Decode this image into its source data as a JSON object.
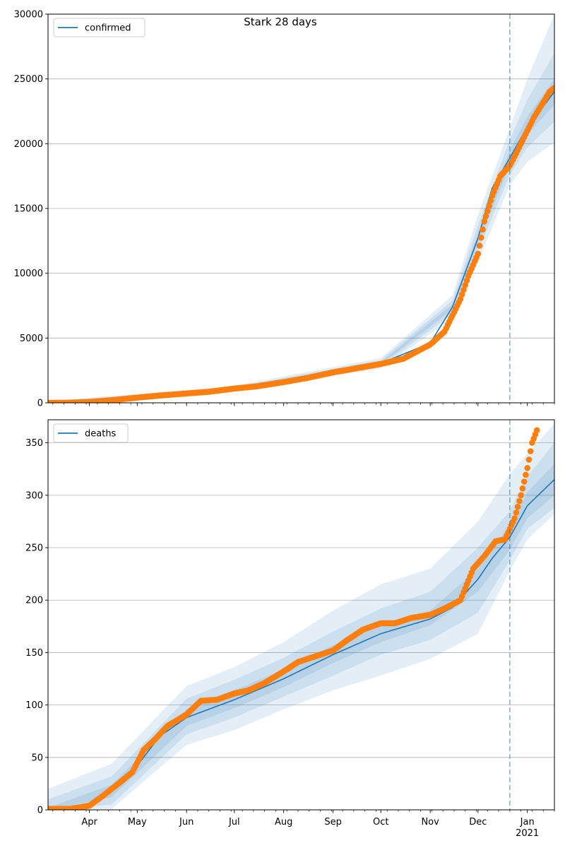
{
  "title": "Stark 28 days",
  "colors": {
    "model_line": "#1f77b4",
    "observed_points": "#ff7f0e",
    "band": "#1f77b4",
    "grid": "#b0b0b0",
    "forecast_marker": "#1f77b4"
  },
  "x_axis": {
    "range": [
      "2020-03-06",
      "2021-01-18"
    ],
    "month_ticks": [
      {
        "date": "2020-04-01",
        "label": "Apr",
        "sublabel": ""
      },
      {
        "date": "2020-05-01",
        "label": "May",
        "sublabel": ""
      },
      {
        "date": "2020-06-01",
        "label": "Jun",
        "sublabel": ""
      },
      {
        "date": "2020-07-01",
        "label": "Jul",
        "sublabel": ""
      },
      {
        "date": "2020-08-01",
        "label": "Aug",
        "sublabel": ""
      },
      {
        "date": "2020-09-01",
        "label": "Sep",
        "sublabel": ""
      },
      {
        "date": "2020-10-01",
        "label": "Oct",
        "sublabel": ""
      },
      {
        "date": "2020-11-01",
        "label": "Nov",
        "sublabel": ""
      },
      {
        "date": "2020-12-01",
        "label": "Dec",
        "sublabel": ""
      },
      {
        "date": "2021-01-01",
        "label": "Jan",
        "sublabel": "2021"
      }
    ],
    "forecast_start": "2020-12-21"
  },
  "chart_data": [
    {
      "type": "line",
      "legend": "confirmed",
      "legend_position": "upper-left",
      "grid": true,
      "ylim": [
        0,
        30000
      ],
      "yticks": [
        0,
        5000,
        10000,
        15000,
        20000,
        25000,
        30000
      ],
      "model_series": {
        "name": "confirmed",
        "x": [
          "2020-03-06",
          "2020-04-01",
          "2020-05-01",
          "2020-06-01",
          "2020-07-01",
          "2020-08-01",
          "2020-09-01",
          "2020-10-01",
          "2020-11-01",
          "2020-11-15",
          "2020-12-01",
          "2020-12-10",
          "2020-12-21",
          "2021-01-01",
          "2021-01-18"
        ],
        "y": [
          0,
          150,
          450,
          780,
          1100,
          1600,
          2350,
          3050,
          4600,
          7400,
          12700,
          16600,
          18900,
          21300,
          24000
        ]
      },
      "uncertainty_bands": [
        {
          "level": "inner",
          "x": [
            "2020-03-06",
            "2020-07-01",
            "2020-10-01",
            "2020-11-15",
            "2020-12-01",
            "2020-12-21",
            "2021-01-01",
            "2021-01-18"
          ],
          "lower": [
            0,
            1050,
            2950,
            7200,
            12300,
            18300,
            20700,
            23000
          ],
          "upper": [
            50,
            1150,
            3150,
            7600,
            13100,
            19500,
            22100,
            25000
          ]
        },
        {
          "level": "middle",
          "x": [
            "2020-03-06",
            "2020-07-01",
            "2020-10-01",
            "2020-11-15",
            "2020-12-01",
            "2020-12-21",
            "2021-01-01",
            "2021-01-18"
          ],
          "lower": [
            0,
            980,
            2800,
            6900,
            11700,
            17600,
            19700,
            21700
          ],
          "upper": [
            80,
            1230,
            3300,
            7900,
            13700,
            20300,
            23400,
            27000
          ]
        },
        {
          "level": "outer",
          "x": [
            "2020-03-06",
            "2020-07-01",
            "2020-10-01",
            "2020-11-15",
            "2020-12-01",
            "2020-12-21",
            "2021-01-01",
            "2021-01-18"
          ],
          "lower": [
            0,
            900,
            2650,
            6500,
            10900,
            16800,
            18600,
            20100
          ],
          "upper": [
            120,
            1320,
            3450,
            8300,
            14500,
            21200,
            25000,
            30000
          ]
        }
      ],
      "observed": {
        "name": "",
        "x": [
          "2020-03-06",
          "2020-03-20",
          "2020-03-31",
          "2020-04-15",
          "2020-05-01",
          "2020-05-15",
          "2020-06-01",
          "2020-06-15",
          "2020-07-01",
          "2020-07-15",
          "2020-08-01",
          "2020-08-15",
          "2020-09-01",
          "2020-09-15",
          "2020-10-01",
          "2020-10-15",
          "2020-11-01",
          "2020-11-10",
          "2020-11-20",
          "2020-11-25",
          "2020-12-01",
          "2020-12-05",
          "2020-12-10",
          "2020-12-15",
          "2020-12-21",
          "2020-12-26",
          "2021-01-01",
          "2021-01-05",
          "2021-01-10",
          "2021-01-15",
          "2021-01-18"
        ],
        "y": [
          0,
          10,
          60,
          200,
          400,
          560,
          720,
          850,
          1100,
          1270,
          1600,
          1900,
          2350,
          2650,
          3000,
          3400,
          4500,
          5500,
          8000,
          9800,
          11500,
          14000,
          16000,
          17500,
          18300,
          19500,
          21000,
          22000,
          23000,
          24000,
          24300
        ]
      }
    },
    {
      "type": "line",
      "legend": "deaths",
      "legend_position": "upper-left",
      "grid": true,
      "ylim": [
        0,
        372
      ],
      "yticks": [
        0,
        50,
        100,
        150,
        200,
        250,
        300,
        350
      ],
      "model_series": {
        "name": "deaths",
        "x": [
          "2020-03-06",
          "2020-04-01",
          "2020-04-15",
          "2020-05-01",
          "2020-05-15",
          "2020-06-01",
          "2020-07-01",
          "2020-08-01",
          "2020-09-01",
          "2020-10-01",
          "2020-11-01",
          "2020-11-15",
          "2020-12-01",
          "2020-12-10",
          "2020-12-21",
          "2021-01-01",
          "2021-01-18"
        ],
        "y": [
          0,
          2,
          18,
          42,
          70,
          88,
          105,
          125,
          148,
          168,
          182,
          193,
          220,
          240,
          260,
          290,
          315
        ]
      },
      "uncertainty_bands": [
        {
          "level": "inner",
          "x": [
            "2020-03-06",
            "2020-04-15",
            "2020-06-01",
            "2020-07-01",
            "2020-08-01",
            "2020-09-01",
            "2020-10-01",
            "2020-11-01",
            "2020-12-01",
            "2020-12-21",
            "2021-01-01",
            "2021-01-18"
          ],
          "lower": [
            0,
            12,
            80,
            97,
            117,
            140,
            160,
            176,
            208,
            248,
            278,
            300
          ],
          "upper": [
            2,
            24,
            96,
            114,
            134,
            157,
            176,
            190,
            230,
            272,
            303,
            330
          ]
        },
        {
          "level": "middle",
          "x": [
            "2020-03-06",
            "2020-04-15",
            "2020-06-01",
            "2020-07-01",
            "2020-08-01",
            "2020-09-01",
            "2020-10-01",
            "2020-11-01",
            "2020-12-01",
            "2020-12-21",
            "2021-01-01",
            "2021-01-18"
          ],
          "lower": [
            0,
            5,
            72,
            88,
            108,
            128,
            148,
            162,
            188,
            238,
            268,
            288
          ],
          "upper": [
            10,
            32,
            106,
            124,
            145,
            170,
            192,
            208,
            250,
            285,
            318,
            350
          ]
        },
        {
          "level": "outer",
          "x": [
            "2020-03-06",
            "2020-04-15",
            "2020-06-01",
            "2020-07-01",
            "2020-08-01",
            "2020-09-01",
            "2020-10-01",
            "2020-11-01",
            "2020-12-01",
            "2020-12-21",
            "2021-01-01",
            "2021-01-18"
          ],
          "lower": [
            0,
            1,
            62,
            76,
            96,
            114,
            128,
            144,
            168,
            228,
            258,
            282
          ],
          "upper": [
            20,
            44,
            118,
            136,
            160,
            190,
            215,
            230,
            275,
            320,
            340,
            368
          ]
        }
      ],
      "observed": {
        "name": "",
        "x": [
          "2020-03-06",
          "2020-03-20",
          "2020-04-01",
          "2020-04-10",
          "2020-04-20",
          "2020-04-28",
          "2020-05-05",
          "2020-05-12",
          "2020-05-20",
          "2020-06-01",
          "2020-06-10",
          "2020-06-20",
          "2020-07-01",
          "2020-07-10",
          "2020-07-20",
          "2020-08-01",
          "2020-08-10",
          "2020-08-20",
          "2020-09-01",
          "2020-09-10",
          "2020-09-20",
          "2020-10-01",
          "2020-10-10",
          "2020-10-20",
          "2020-11-01",
          "2020-11-10",
          "2020-11-20",
          "2020-11-28",
          "2020-12-05",
          "2020-12-12",
          "2020-12-18",
          "2020-12-24",
          "2020-12-28",
          "2021-01-01",
          "2021-01-04",
          "2021-01-07"
        ],
        "y": [
          1,
          1,
          4,
          14,
          26,
          36,
          57,
          67,
          80,
          91,
          104,
          105,
          111,
          114,
          121,
          132,
          141,
          146,
          152,
          162,
          172,
          178,
          178,
          183,
          186,
          192,
          200,
          230,
          242,
          256,
          258,
          278,
          300,
          326,
          350,
          362
        ]
      }
    }
  ]
}
